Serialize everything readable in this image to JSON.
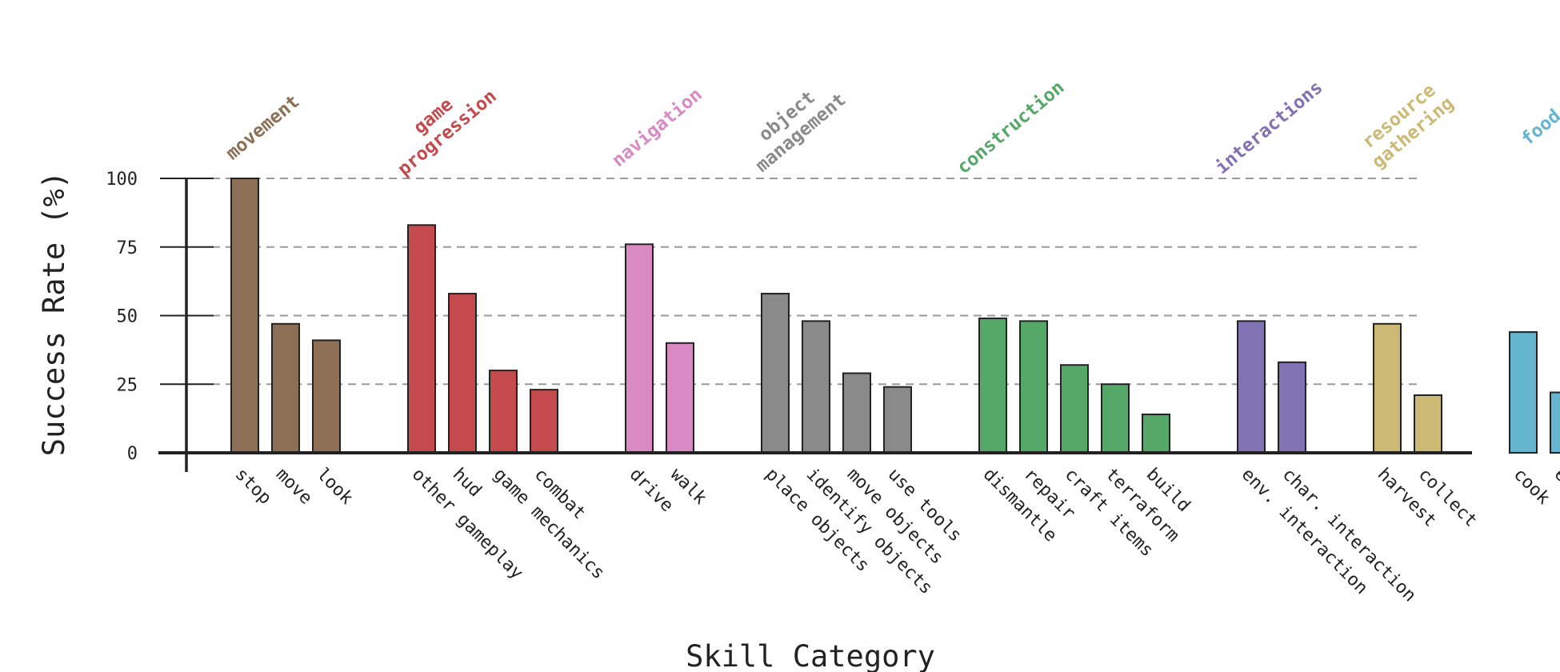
{
  "chart_data": {
    "type": "bar",
    "xlabel": "Skill Category",
    "ylabel": "Success Rate (%)",
    "ylim": [
      0,
      100
    ],
    "yticks": [
      0,
      25,
      50,
      75,
      100
    ],
    "grid": "horizontal dashed",
    "groups": [
      {
        "name": "movement",
        "color": "#8c6f55",
        "categories": [
          "stop",
          "move",
          "look"
        ],
        "values": [
          100,
          47,
          41
        ]
      },
      {
        "name": "game progression",
        "color": "#c44a4e",
        "categories": [
          "other gameplay",
          "hud",
          "game mechanics",
          "combat"
        ],
        "values": [
          83,
          58,
          30,
          23
        ]
      },
      {
        "name": "navigation",
        "color": "#d98ac4",
        "categories": [
          "drive",
          "walk"
        ],
        "values": [
          76,
          40
        ]
      },
      {
        "name": "object management",
        "color": "#8a8a8a",
        "categories": [
          "place objects",
          "identify objects",
          "move objects",
          "use tools"
        ],
        "values": [
          58,
          48,
          29,
          24
        ]
      },
      {
        "name": "construction",
        "color": "#55a868",
        "categories": [
          "dismantle",
          "repair",
          "craft items",
          "terraform",
          "build"
        ],
        "values": [
          49,
          48,
          32,
          25,
          14
        ]
      },
      {
        "name": "interactions",
        "color": "#8172b3",
        "categories": [
          "env. interaction",
          "char. interaction"
        ],
        "values": [
          48,
          33
        ]
      },
      {
        "name": "resource gathering",
        "color": "#ccb974",
        "categories": [
          "harvest",
          "collect"
        ],
        "values": [
          47,
          21
        ]
      },
      {
        "name": "food",
        "color": "#64b5cd",
        "categories": [
          "cook",
          "eat"
        ],
        "values": [
          44,
          22
        ]
      }
    ]
  }
}
